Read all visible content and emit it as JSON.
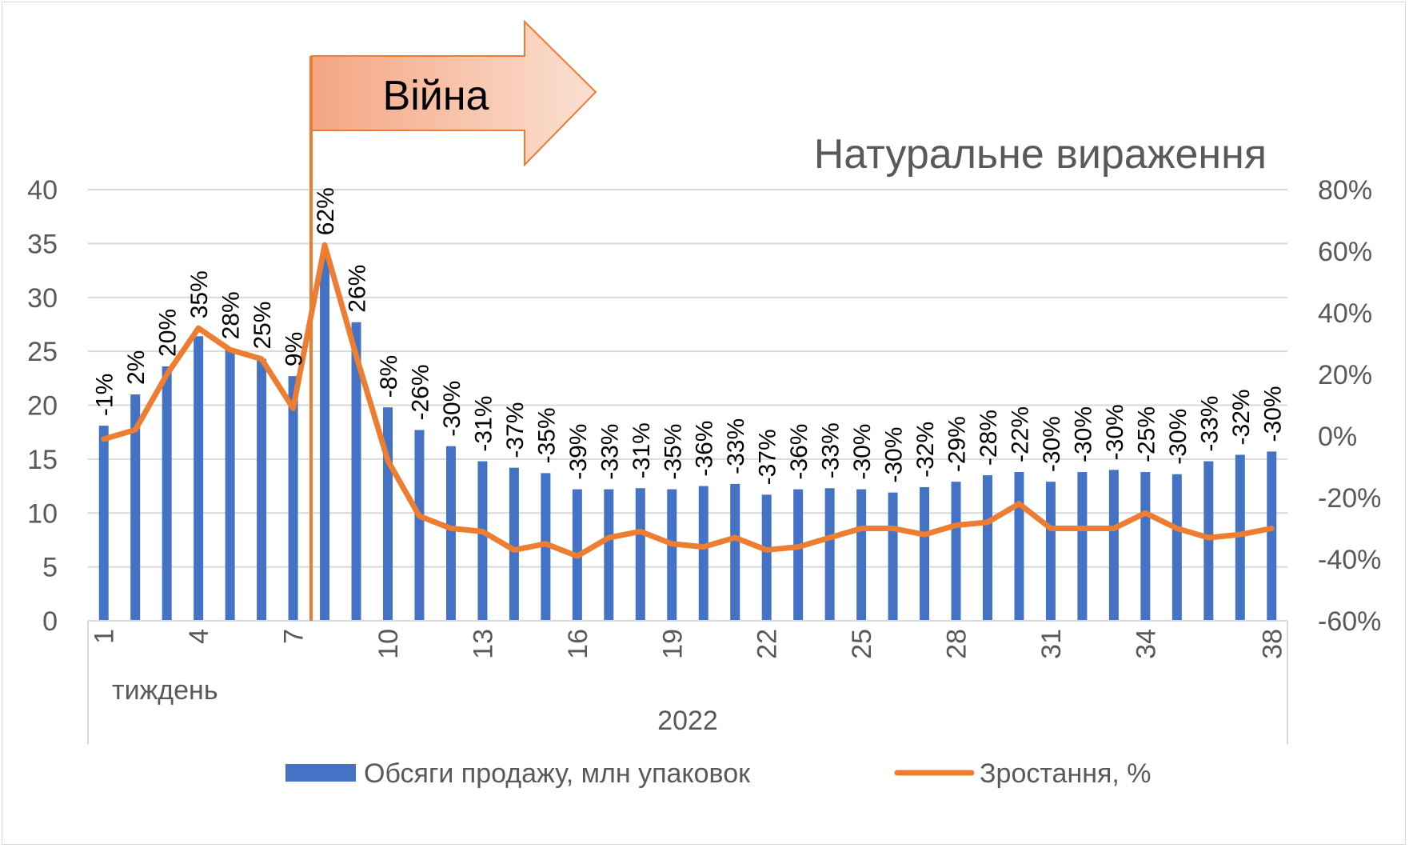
{
  "chart_data": {
    "type": "bar",
    "subtitle": "Натуральне вираження",
    "annotation": "Війна",
    "x_group_label": "тиждень",
    "year_label": "2022",
    "weeks": [
      1,
      2,
      3,
      4,
      5,
      6,
      7,
      8,
      9,
      10,
      11,
      12,
      13,
      14,
      15,
      16,
      17,
      18,
      19,
      20,
      21,
      22,
      23,
      24,
      25,
      26,
      27,
      28,
      29,
      30,
      31,
      32,
      33,
      34,
      35,
      36,
      37,
      38
    ],
    "x_tick_labels": [
      "1",
      "4",
      "7",
      "10",
      "13",
      "16",
      "19",
      "22",
      "25",
      "28",
      "31",
      "34",
      "38"
    ],
    "y_left_ticks": [
      "0",
      "5",
      "10",
      "15",
      "20",
      "25",
      "30",
      "35",
      "40"
    ],
    "y_left_range": [
      0,
      40
    ],
    "y_right_ticks": [
      "-60%",
      "-40%",
      "-20%",
      "0%",
      "20%",
      "40%",
      "60%",
      "80%"
    ],
    "y_right_range": [
      -60,
      80
    ],
    "series": [
      {
        "name": "Обсяги продажу, млн упаковок",
        "axis": "left",
        "kind": "bar",
        "color": "#4472C4",
        "values": [
          18.1,
          21.0,
          23.6,
          26.4,
          25.2,
          24.3,
          22.7,
          34.0,
          27.7,
          19.8,
          17.7,
          16.2,
          14.8,
          14.2,
          13.7,
          12.2,
          12.2,
          12.3,
          12.2,
          12.5,
          12.7,
          11.7,
          12.2,
          12.3,
          12.2,
          11.9,
          12.4,
          12.9,
          13.5,
          13.8,
          12.9,
          13.8,
          14.0,
          13.8,
          13.6,
          14.8,
          15.4,
          15.7
        ]
      },
      {
        "name": "Зростання, %",
        "axis": "right",
        "kind": "line",
        "color": "#ED7D31",
        "values": [
          -1,
          2,
          20,
          35,
          28,
          25,
          9,
          62,
          26,
          -8,
          -26,
          -30,
          -31,
          -37,
          -35,
          -39,
          -33,
          -31,
          -35,
          -36,
          -33,
          -37,
          -36,
          -33,
          -30,
          -30,
          -32,
          -29,
          -28,
          -22,
          -30,
          -30,
          -30,
          -25,
          -30,
          -33,
          -32,
          -30
        ],
        "labels": [
          "-1%",
          "2%",
          "20%",
          "35%",
          "28%",
          "25%",
          "9%",
          "62%",
          "26%",
          "-8%",
          "-26%",
          "-30%",
          "-31%",
          "-37%",
          "-35%",
          "-39%",
          "-33%",
          "-31%",
          "-35%",
          "-36%",
          "-33%",
          "-37%",
          "-36%",
          "-33%",
          "-30%",
          "-30%",
          "-32%",
          "-29%",
          "-28%",
          "-22%",
          "-30%",
          "-30%",
          "-30%",
          "-25%",
          "-30%",
          "-33%",
          "-32%",
          "-30%"
        ]
      }
    ],
    "war_marker_between_weeks": [
      7,
      8
    ],
    "grid": true,
    "legend_position": "bottom"
  },
  "colors": {
    "bar": "#4472C4",
    "line": "#ED7D31",
    "arrow_fill_top": "#FBE0D2",
    "arrow_fill_bottom": "#F4A582",
    "grid": "#d9d9d9",
    "text": "#595959"
  }
}
